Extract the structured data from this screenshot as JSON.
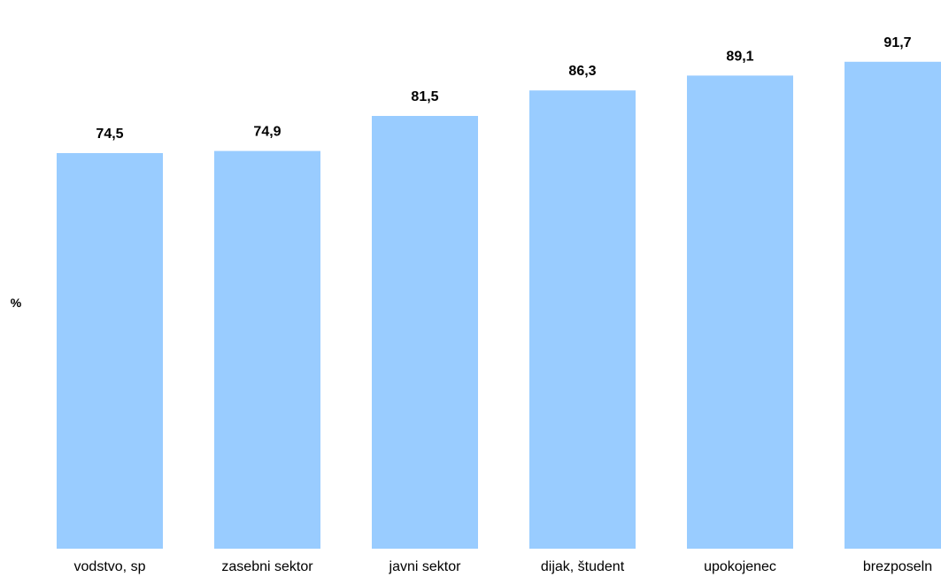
{
  "chart_data": {
    "type": "bar",
    "categories": [
      "vodstvo, sp",
      "zasebni sektor",
      "javni sektor",
      "dijak, študent",
      "upokojenec",
      "brezposeln"
    ],
    "values": [
      74.5,
      74.9,
      81.5,
      86.3,
      89.1,
      91.7
    ],
    "value_labels": [
      "74,5",
      "74,9",
      "81,5",
      "86,3",
      "89,1",
      "91,7"
    ],
    "ylabel": "%",
    "ylim": [
      0,
      100
    ],
    "grid": false,
    "legend": "none",
    "bar_color": "#99ccff"
  }
}
